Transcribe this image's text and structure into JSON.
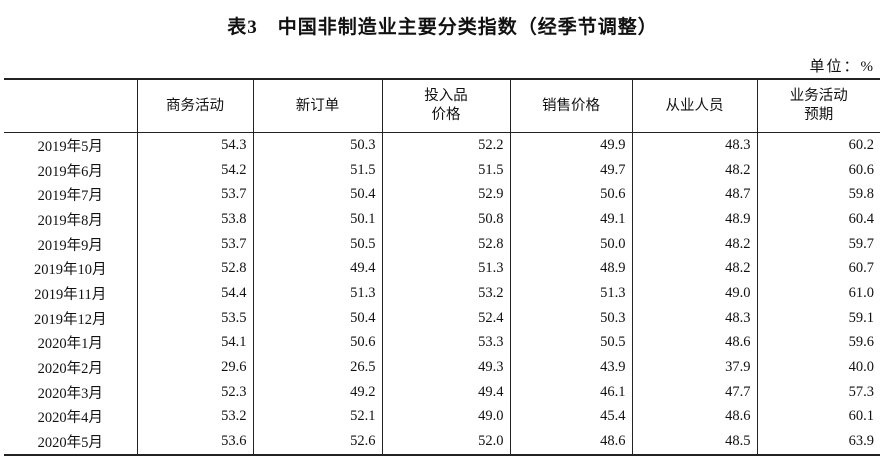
{
  "header": {
    "title": "表3　中国非制造业主要分类指数（经季节调整）",
    "unit": "单位：%"
  },
  "table": {
    "columns": [
      [],
      [
        "商务活动"
      ],
      [
        "新订单"
      ],
      [
        "投入品",
        "价格"
      ],
      [
        "销售价格"
      ],
      [
        "从业人员"
      ],
      [
        "业务活动",
        "预期"
      ]
    ],
    "rows": [
      [
        "2019年5月",
        "54.3",
        "50.3",
        "52.2",
        "49.9",
        "48.3",
        "60.2"
      ],
      [
        "2019年6月",
        "54.2",
        "51.5",
        "51.5",
        "49.7",
        "48.2",
        "60.6"
      ],
      [
        "2019年7月",
        "53.7",
        "50.4",
        "52.9",
        "50.6",
        "48.7",
        "59.8"
      ],
      [
        "2019年8月",
        "53.8",
        "50.1",
        "50.8",
        "49.1",
        "48.9",
        "60.4"
      ],
      [
        "2019年9月",
        "53.7",
        "50.5",
        "52.8",
        "50.0",
        "48.2",
        "59.7"
      ],
      [
        "2019年10月",
        "52.8",
        "49.4",
        "51.3",
        "48.9",
        "48.2",
        "60.7"
      ],
      [
        "2019年11月",
        "54.4",
        "51.3",
        "53.2",
        "51.3",
        "49.0",
        "61.0"
      ],
      [
        "2019年12月",
        "53.5",
        "50.4",
        "52.4",
        "50.3",
        "48.3",
        "59.1"
      ],
      [
        "2020年1月",
        "54.1",
        "50.6",
        "53.3",
        "50.5",
        "48.6",
        "59.6"
      ],
      [
        "2020年2月",
        "29.6",
        "26.5",
        "49.3",
        "43.9",
        "37.9",
        "40.0"
      ],
      [
        "2020年3月",
        "52.3",
        "49.2",
        "49.4",
        "46.1",
        "47.7",
        "57.3"
      ],
      [
        "2020年4月",
        "53.2",
        "52.1",
        "49.0",
        "45.4",
        "48.6",
        "60.1"
      ],
      [
        "2020年5月",
        "53.6",
        "52.6",
        "52.0",
        "48.6",
        "48.5",
        "63.9"
      ]
    ]
  }
}
